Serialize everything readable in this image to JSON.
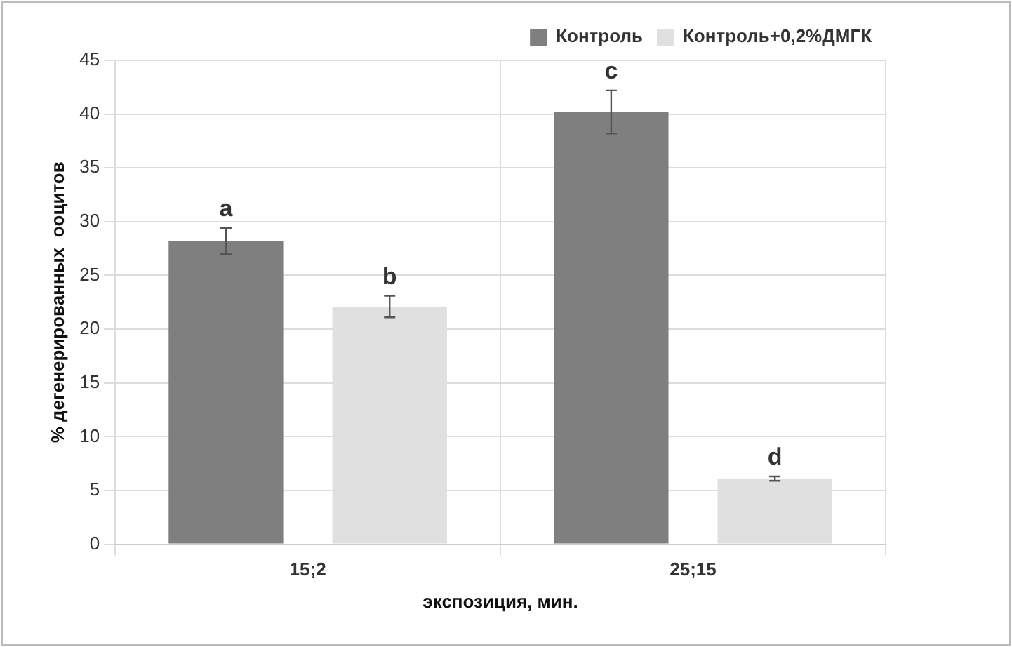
{
  "chart_data": {
    "type": "bar",
    "xlabel": "экспозиция, мин.",
    "ylabel": "% дегенерированных  ооцитов",
    "categories": [
      "15;2",
      "25;15"
    ],
    "series": [
      {
        "name": "Контроль",
        "color": "#7f7f7f",
        "values": [
          28.2,
          40.2
        ],
        "errors": [
          1.2,
          2
        ],
        "value_labels": [
          "a",
          "c"
        ]
      },
      {
        "name": "Контроль+0,2%ДМГК",
        "color": "#e0e0e0",
        "values": [
          22.1,
          6.1
        ],
        "errors": [
          1,
          0.2
        ],
        "value_labels": [
          "b",
          "d"
        ]
      }
    ],
    "ylim": [
      0,
      45
    ],
    "yticks": [
      0,
      5,
      10,
      15,
      20,
      25,
      30,
      35,
      40,
      45
    ],
    "grid": true,
    "legend": "top right"
  }
}
